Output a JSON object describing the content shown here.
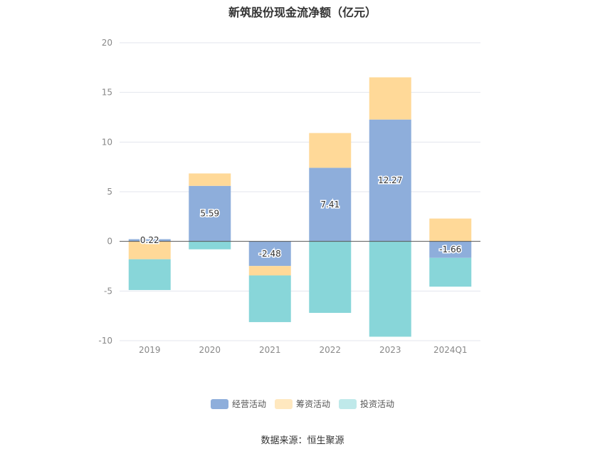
{
  "chart_data": {
    "type": "bar",
    "stacked": true,
    "title": "新筑股份现金流净额（亿元）",
    "categories": [
      "2019",
      "2020",
      "2021",
      "2022",
      "2023",
      "2024Q1"
    ],
    "ylim": [
      -10,
      20
    ],
    "yticks": [
      -10,
      -5,
      0,
      5,
      10,
      15,
      20
    ],
    "grid": true,
    "legend_position": "bottom",
    "series": [
      {
        "name": "经营活动",
        "color": "#8eaedb",
        "values": [
          0.22,
          5.59,
          -2.48,
          7.41,
          12.27,
          -1.66
        ],
        "data_labels": [
          "0.22",
          "5.59",
          "-2.48",
          "7.41",
          "12.27",
          "-1.66"
        ]
      },
      {
        "name": "筹资活动",
        "color": "#ffd998",
        "values": [
          -1.8,
          1.25,
          -0.95,
          3.5,
          4.25,
          2.3
        ]
      },
      {
        "name": "投资活动",
        "color": "#88d6d9",
        "values": [
          -3.1,
          -0.8,
          -4.7,
          -7.2,
          -9.6,
          -2.9
        ]
      }
    ]
  },
  "source_text": "数据来源：恒生聚源"
}
